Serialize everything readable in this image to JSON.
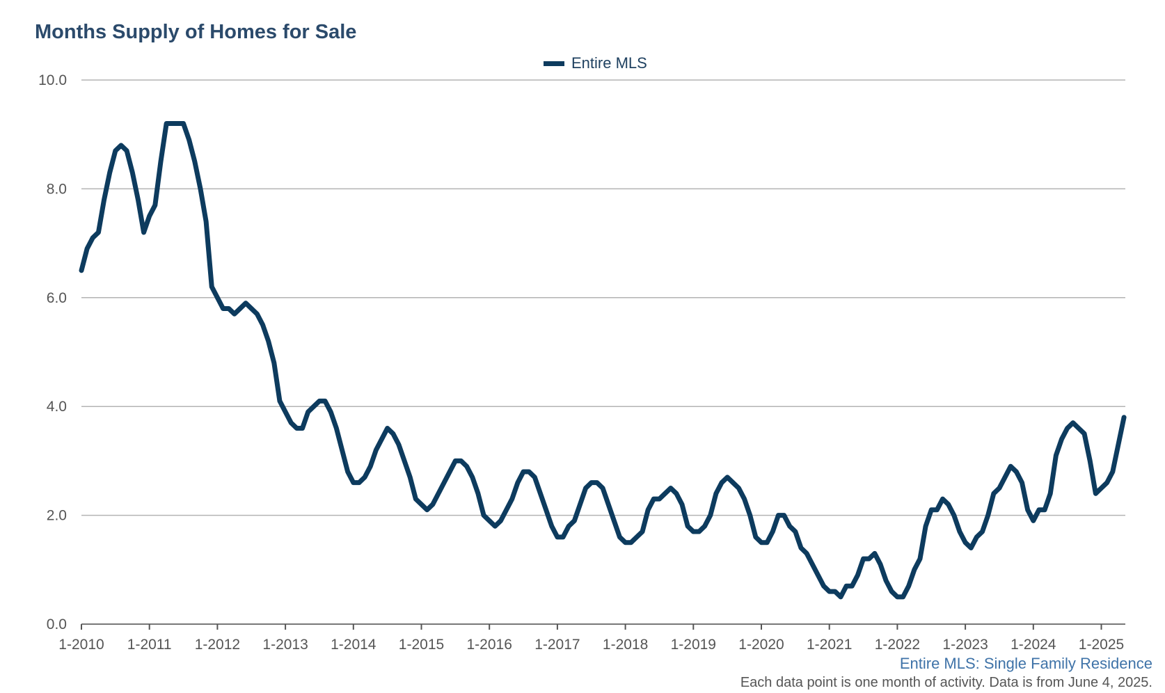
{
  "title": "Months Supply of Homes for Sale",
  "legend": {
    "label": "Entire MLS",
    "color": "#0d3b5e"
  },
  "footer": {
    "series_note": "Entire MLS: Single Family Residence",
    "data_note": "Each data point is one month of activity. Data is from June 4, 2025."
  },
  "chart_data": {
    "type": "line",
    "title": "Months Supply of Homes for Sale",
    "xlabel": "",
    "ylabel": "",
    "ylim": [
      0,
      10
    ],
    "yticks": [
      "0.0",
      "2.0",
      "4.0",
      "6.0",
      "8.0",
      "10.0"
    ],
    "xticks": [
      "1-2010",
      "1-2011",
      "1-2012",
      "1-2013",
      "1-2014",
      "1-2015",
      "1-2016",
      "1-2017",
      "1-2018",
      "1-2019",
      "1-2020",
      "1-2021",
      "1-2022",
      "1-2023",
      "1-2024",
      "1-2025"
    ],
    "grid": true,
    "legend_position": "top-center",
    "x_start": "1-2010",
    "x_end": "5-2025",
    "series": [
      {
        "name": "Entire MLS",
        "color": "#0d3b5e",
        "values": [
          6.5,
          6.9,
          7.1,
          7.2,
          7.8,
          8.3,
          8.7,
          8.8,
          8.7,
          8.3,
          7.8,
          7.2,
          7.5,
          7.7,
          8.5,
          9.2,
          9.2,
          9.2,
          9.2,
          8.9,
          8.5,
          8.0,
          7.4,
          6.2,
          6.0,
          5.8,
          5.8,
          5.7,
          5.8,
          5.9,
          5.8,
          5.7,
          5.5,
          5.2,
          4.8,
          4.1,
          3.9,
          3.7,
          3.6,
          3.6,
          3.9,
          4.0,
          4.1,
          4.1,
          3.9,
          3.6,
          3.2,
          2.8,
          2.6,
          2.6,
          2.7,
          2.9,
          3.2,
          3.4,
          3.6,
          3.5,
          3.3,
          3.0,
          2.7,
          2.3,
          2.2,
          2.1,
          2.2,
          2.4,
          2.6,
          2.8,
          3.0,
          3.0,
          2.9,
          2.7,
          2.4,
          2.0,
          1.9,
          1.8,
          1.9,
          2.1,
          2.3,
          2.6,
          2.8,
          2.8,
          2.7,
          2.4,
          2.1,
          1.8,
          1.6,
          1.6,
          1.8,
          1.9,
          2.2,
          2.5,
          2.6,
          2.6,
          2.5,
          2.2,
          1.9,
          1.6,
          1.5,
          1.5,
          1.6,
          1.7,
          2.1,
          2.3,
          2.3,
          2.4,
          2.5,
          2.4,
          2.2,
          1.8,
          1.7,
          1.7,
          1.8,
          2.0,
          2.4,
          2.6,
          2.7,
          2.6,
          2.5,
          2.3,
          2.0,
          1.6,
          1.5,
          1.5,
          1.7,
          2.0,
          2.0,
          1.8,
          1.7,
          1.4,
          1.3,
          1.1,
          0.9,
          0.7,
          0.6,
          0.6,
          0.5,
          0.7,
          0.7,
          0.9,
          1.2,
          1.2,
          1.3,
          1.1,
          0.8,
          0.6,
          0.5,
          0.5,
          0.7,
          1.0,
          1.2,
          1.8,
          2.1,
          2.1,
          2.3,
          2.2,
          2.0,
          1.7,
          1.5,
          1.4,
          1.6,
          1.7,
          2.0,
          2.4,
          2.5,
          2.7,
          2.9,
          2.8,
          2.6,
          2.1,
          1.9,
          2.1,
          2.1,
          2.4,
          3.1,
          3.4,
          3.6,
          3.7,
          3.6,
          3.5,
          3.0,
          2.4,
          2.5,
          2.6,
          2.8,
          3.3,
          3.8
        ]
      }
    ]
  }
}
